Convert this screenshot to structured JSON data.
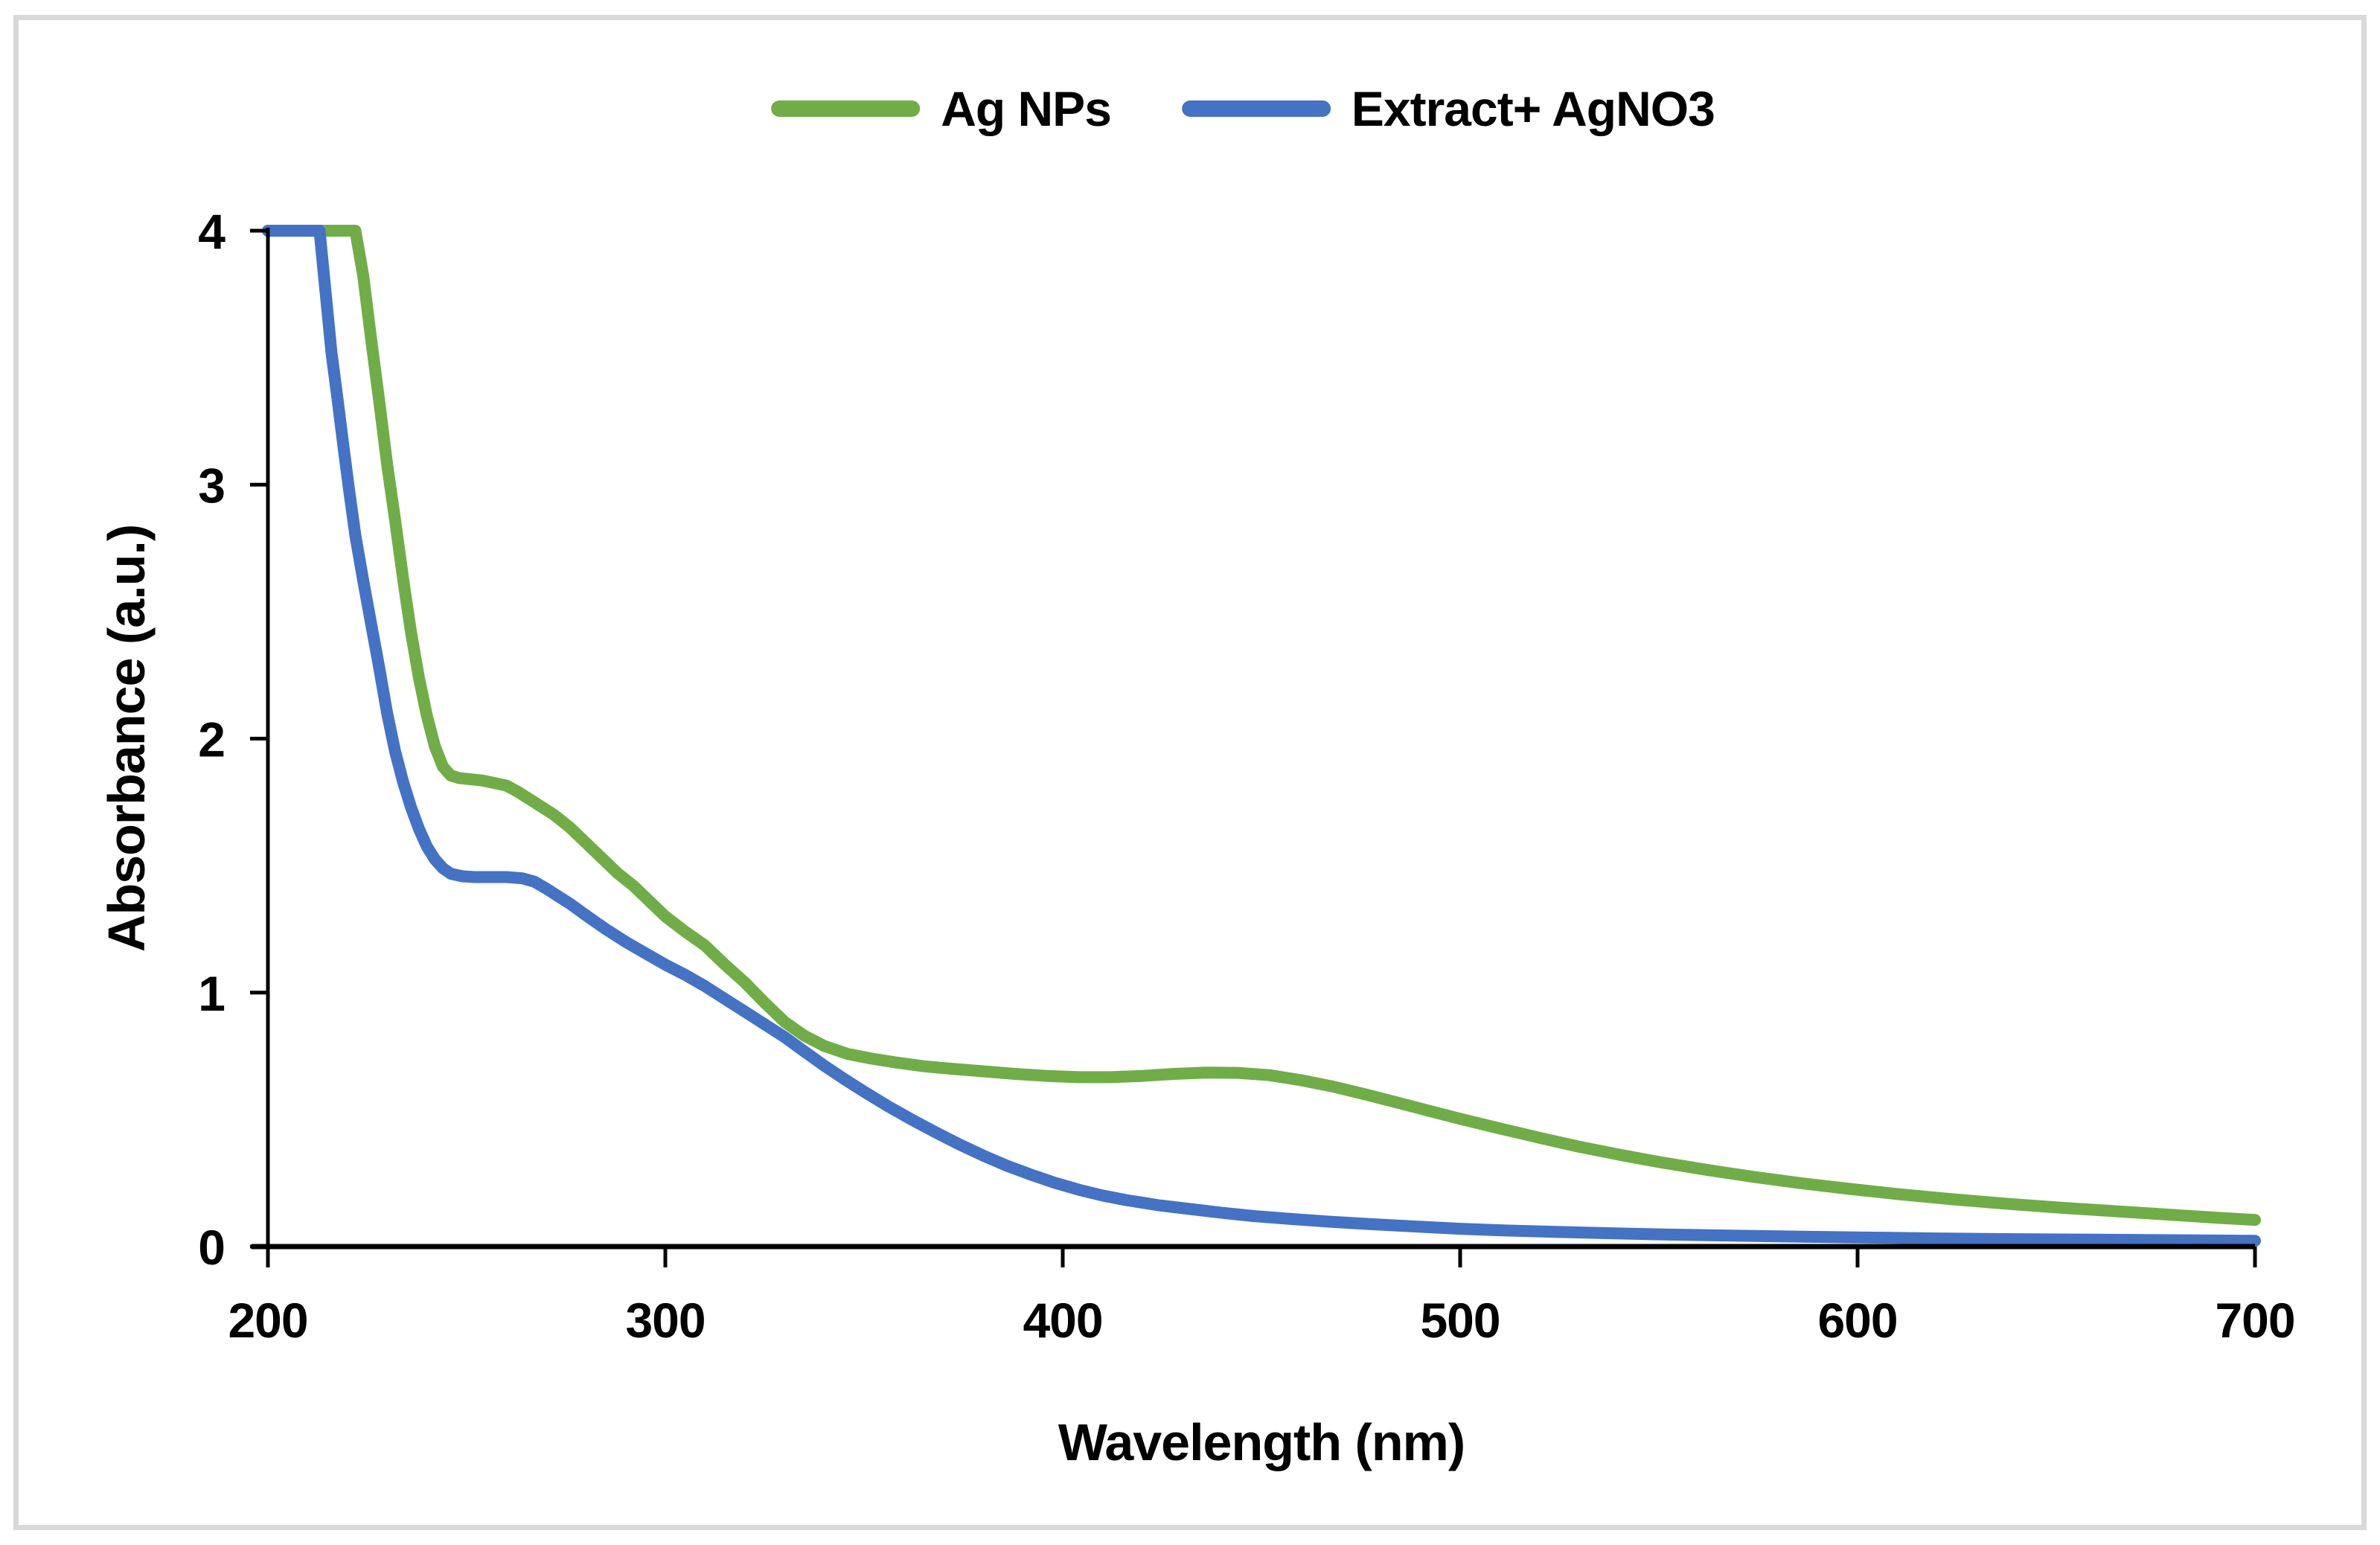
{
  "figure": {
    "background_color": "#ffffff",
    "border_color": "#d9d9d9",
    "axis_color": "#000000",
    "tick_label_color": "#000000"
  },
  "chart_data": {
    "type": "line",
    "title": "",
    "xlabel": "Wavelength (nm)",
    "ylabel": "Absorbance (a.u.)",
    "xlim": [
      200,
      700
    ],
    "ylim": [
      0,
      4
    ],
    "x_ticks": [
      200,
      300,
      400,
      500,
      600,
      700
    ],
    "y_ticks": [
      0,
      1,
      2,
      3,
      4
    ],
    "grid": false,
    "legend_position": "top-center",
    "series": [
      {
        "name": "Ag NPs",
        "color": "#70ad47",
        "points": [
          [
            200,
            4
          ],
          [
            210,
            4
          ],
          [
            218,
            4
          ],
          [
            222,
            4
          ],
          [
            224,
            3.82
          ],
          [
            226,
            3.57
          ],
          [
            228,
            3.33
          ],
          [
            230,
            3.08
          ],
          [
            232,
            2.86
          ],
          [
            234,
            2.63
          ],
          [
            236,
            2.42
          ],
          [
            238,
            2.24
          ],
          [
            240,
            2.09
          ],
          [
            242,
            1.97
          ],
          [
            244,
            1.89
          ],
          [
            246,
            1.855
          ],
          [
            248,
            1.845
          ],
          [
            251,
            1.84
          ],
          [
            254,
            1.835
          ],
          [
            257,
            1.825
          ],
          [
            260,
            1.815
          ],
          [
            263,
            1.79
          ],
          [
            266,
            1.76
          ],
          [
            269,
            1.73
          ],
          [
            272,
            1.7
          ],
          [
            276,
            1.65
          ],
          [
            280,
            1.59
          ],
          [
            284,
            1.53
          ],
          [
            288,
            1.47
          ],
          [
            292,
            1.42
          ],
          [
            296,
            1.36
          ],
          [
            300,
            1.3
          ],
          [
            305,
            1.24
          ],
          [
            310,
            1.185
          ],
          [
            315,
            1.11
          ],
          [
            320,
            1.04
          ],
          [
            325,
            0.96
          ],
          [
            330,
            0.885
          ],
          [
            335,
            0.83
          ],
          [
            340,
            0.79
          ],
          [
            346,
            0.758
          ],
          [
            352,
            0.74
          ],
          [
            358,
            0.725
          ],
          [
            365,
            0.71
          ],
          [
            372,
            0.7
          ],
          [
            380,
            0.69
          ],
          [
            388,
            0.68
          ],
          [
            396,
            0.672
          ],
          [
            404,
            0.667
          ],
          [
            412,
            0.667
          ],
          [
            420,
            0.672
          ],
          [
            428,
            0.68
          ],
          [
            436,
            0.685
          ],
          [
            444,
            0.684
          ],
          [
            452,
            0.675
          ],
          [
            460,
            0.655
          ],
          [
            468,
            0.63
          ],
          [
            476,
            0.6
          ],
          [
            484,
            0.568
          ],
          [
            492,
            0.535
          ],
          [
            500,
            0.503
          ],
          [
            510,
            0.465
          ],
          [
            520,
            0.428
          ],
          [
            530,
            0.393
          ],
          [
            540,
            0.362
          ],
          [
            550,
            0.333
          ],
          [
            562,
            0.302
          ],
          [
            574,
            0.274
          ],
          [
            586,
            0.249
          ],
          [
            598,
            0.227
          ],
          [
            610,
            0.207
          ],
          [
            624,
            0.186
          ],
          [
            638,
            0.168
          ],
          [
            652,
            0.152
          ],
          [
            666,
            0.138
          ],
          [
            680,
            0.124
          ],
          [
            690,
            0.114
          ],
          [
            700,
            0.105
          ]
        ]
      },
      {
        "name": "Extract+ AgNO3",
        "color": "#4472c4",
        "points": [
          [
            200,
            4
          ],
          [
            206,
            4
          ],
          [
            213,
            4
          ],
          [
            214.5,
            3.76
          ],
          [
            216,
            3.52
          ],
          [
            217.5,
            3.34
          ],
          [
            219,
            3.15
          ],
          [
            220.5,
            2.97
          ],
          [
            222,
            2.8
          ],
          [
            224,
            2.62
          ],
          [
            226,
            2.45
          ],
          [
            228,
            2.28
          ],
          [
            230,
            2.1
          ],
          [
            232,
            1.95
          ],
          [
            234,
            1.83
          ],
          [
            236,
            1.73
          ],
          [
            238,
            1.645
          ],
          [
            240,
            1.575
          ],
          [
            242,
            1.525
          ],
          [
            244,
            1.49
          ],
          [
            246,
            1.468
          ],
          [
            249,
            1.458
          ],
          [
            252,
            1.455
          ],
          [
            256,
            1.455
          ],
          [
            260,
            1.455
          ],
          [
            264,
            1.45
          ],
          [
            267,
            1.437
          ],
          [
            270,
            1.41
          ],
          [
            273,
            1.38
          ],
          [
            276,
            1.35
          ],
          [
            280,
            1.305
          ],
          [
            285,
            1.25
          ],
          [
            290,
            1.2
          ],
          [
            295,
            1.155
          ],
          [
            300,
            1.11
          ],
          [
            305,
            1.07
          ],
          [
            310,
            1.025
          ],
          [
            315,
            0.975
          ],
          [
            320,
            0.925
          ],
          [
            325,
            0.875
          ],
          [
            330,
            0.825
          ],
          [
            335,
            0.768
          ],
          [
            340,
            0.712
          ],
          [
            345,
            0.66
          ],
          [
            350,
            0.61
          ],
          [
            356,
            0.553
          ],
          [
            362,
            0.5
          ],
          [
            368,
            0.45
          ],
          [
            374,
            0.402
          ],
          [
            380,
            0.358
          ],
          [
            386,
            0.318
          ],
          [
            392,
            0.283
          ],
          [
            398,
            0.251
          ],
          [
            404,
            0.224
          ],
          [
            410,
            0.201
          ],
          [
            416,
            0.183
          ],
          [
            424,
            0.163
          ],
          [
            432,
            0.148
          ],
          [
            440,
            0.133
          ],
          [
            448,
            0.12
          ],
          [
            458,
            0.108
          ],
          [
            468,
            0.097
          ],
          [
            478,
            0.088
          ],
          [
            490,
            0.078
          ],
          [
            500,
            0.07
          ],
          [
            512,
            0.063
          ],
          [
            524,
            0.058
          ],
          [
            536,
            0.053
          ],
          [
            550,
            0.048
          ],
          [
            565,
            0.044
          ],
          [
            580,
            0.04
          ],
          [
            600,
            0.036
          ],
          [
            620,
            0.032
          ],
          [
            640,
            0.029
          ],
          [
            660,
            0.027
          ],
          [
            680,
            0.025
          ],
          [
            700,
            0.023
          ]
        ]
      }
    ]
  }
}
